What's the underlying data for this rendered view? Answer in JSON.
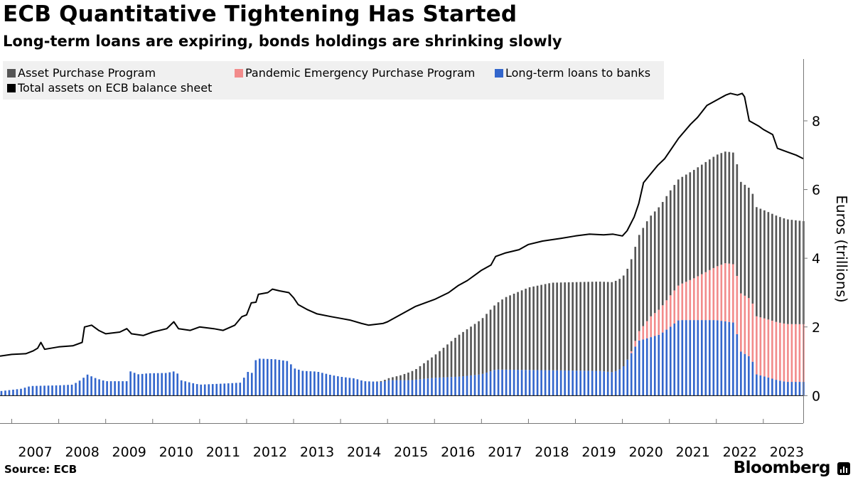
{
  "header": {
    "title": "ECB Quantitative Tightening Has Started",
    "subtitle": "Long-term loans are expiring, bonds holdings are shrinking slowly"
  },
  "legend": {
    "app": "Asset Purchase Program",
    "pepp": "Pandemic Emergency Purchase Program",
    "loans": "Long-term loans to banks",
    "total": "Total assets on ECB balance sheet"
  },
  "footer": {
    "source": "Source: ECB",
    "brand": "Bloomberg"
  },
  "colors": {
    "app": "#555555",
    "pepp": "#f28b8b",
    "loans": "#3366cc",
    "total": "#000000",
    "axis": "#777777"
  },
  "chart_data": {
    "type": "bar",
    "stacked": true,
    "title": "ECB Quantitative Tightening Has Started",
    "subtitle": "Long-term loans are expiring, bonds holdings are shrinking slowly",
    "ylabel": "Euros (trillions)",
    "xlabel": "",
    "ylim": [
      -0.8,
      9.8
    ],
    "xlim": [
      2006.75,
      2023.85
    ],
    "yticks": [
      0,
      2,
      4,
      6,
      8
    ],
    "ytick_labels": [
      "0",
      "2",
      "4",
      "6",
      "8"
    ],
    "xtick_labels": [
      "2007",
      "2008",
      "2009",
      "2010",
      "2011",
      "2012",
      "2013",
      "2014",
      "2015",
      "2016",
      "2017",
      "2018",
      "2019",
      "2020",
      "2021",
      "2022",
      "2023"
    ],
    "bar_start": 2006.78,
    "bar_step": 0.0833,
    "bar_count": 206,
    "series": [
      {
        "name": "Long-term loans to banks",
        "kind": "bar",
        "anchors": [
          [
            2006.75,
            0.13
          ],
          [
            2007.2,
            0.2
          ],
          [
            2007.4,
            0.28
          ],
          [
            2008.0,
            0.3
          ],
          [
            2008.3,
            0.32
          ],
          [
            2008.5,
            0.48
          ],
          [
            2008.6,
            0.62
          ],
          [
            2008.8,
            0.5
          ],
          [
            2009.0,
            0.42
          ],
          [
            2009.45,
            0.42
          ],
          [
            2009.5,
            0.72
          ],
          [
            2009.7,
            0.62
          ],
          [
            2009.9,
            0.65
          ],
          [
            2010.3,
            0.66
          ],
          [
            2010.5,
            0.72
          ],
          [
            2010.6,
            0.45
          ],
          [
            2010.8,
            0.38
          ],
          [
            2011.0,
            0.32
          ],
          [
            2011.5,
            0.35
          ],
          [
            2011.9,
            0.38
          ],
          [
            2012.0,
            0.7
          ],
          [
            2012.15,
            0.65
          ],
          [
            2012.2,
            1.08
          ],
          [
            2012.6,
            1.06
          ],
          [
            2012.9,
            1.0
          ],
          [
            2013.0,
            0.8
          ],
          [
            2013.2,
            0.72
          ],
          [
            2013.5,
            0.7
          ],
          [
            2013.8,
            0.6
          ],
          [
            2014.0,
            0.55
          ],
          [
            2014.3,
            0.5
          ],
          [
            2014.5,
            0.42
          ],
          [
            2014.9,
            0.4
          ],
          [
            2015.0,
            0.45
          ],
          [
            2015.5,
            0.45
          ],
          [
            2016.0,
            0.52
          ],
          [
            2016.5,
            0.55
          ],
          [
            2017.0,
            0.62
          ],
          [
            2017.3,
            0.76
          ],
          [
            2019.5,
            0.72
          ],
          [
            2019.8,
            0.68
          ],
          [
            2020.0,
            0.8
          ],
          [
            2020.35,
            1.6
          ],
          [
            2020.8,
            1.78
          ],
          [
            2021.0,
            1.98
          ],
          [
            2021.2,
            2.2
          ],
          [
            2022.0,
            2.2
          ],
          [
            2022.4,
            2.12
          ],
          [
            2022.5,
            1.3
          ],
          [
            2022.75,
            1.1
          ],
          [
            2022.85,
            0.62
          ],
          [
            2023.05,
            0.55
          ],
          [
            2023.3,
            0.45
          ],
          [
            2023.5,
            0.4
          ],
          [
            2023.85,
            0.4
          ]
        ]
      },
      {
        "name": "Pandemic Emergency Purchase Program",
        "kind": "bar",
        "anchors": [
          [
            2006.75,
            0
          ],
          [
            2020.15,
            0
          ],
          [
            2020.3,
            0.2
          ],
          [
            2020.6,
            0.6
          ],
          [
            2021.0,
            0.9
          ],
          [
            2021.5,
            1.2
          ],
          [
            2022.2,
            1.7
          ],
          [
            2023.85,
            1.68
          ]
        ]
      },
      {
        "name": "Asset Purchase Program",
        "kind": "bar",
        "anchors": [
          [
            2006.75,
            0
          ],
          [
            2014.75,
            0
          ],
          [
            2015.0,
            0.05
          ],
          [
            2015.3,
            0.15
          ],
          [
            2015.6,
            0.3
          ],
          [
            2016.0,
            0.65
          ],
          [
            2016.5,
            1.2
          ],
          [
            2017.0,
            1.6
          ],
          [
            2017.5,
            2.1
          ],
          [
            2018.0,
            2.4
          ],
          [
            2018.5,
            2.55
          ],
          [
            2019.5,
            2.6
          ],
          [
            2020.15,
            2.65
          ],
          [
            2020.5,
            2.9
          ],
          [
            2021.0,
            3.05
          ],
          [
            2021.5,
            3.15
          ],
          [
            2022.0,
            3.25
          ],
          [
            2022.5,
            3.25
          ],
          [
            2023.0,
            3.15
          ],
          [
            2023.5,
            3.05
          ],
          [
            2023.85,
            3.0
          ]
        ]
      },
      {
        "name": "Total assets on ECB balance sheet",
        "kind": "line",
        "points": [
          [
            2006.75,
            1.15
          ],
          [
            2007.0,
            1.2
          ],
          [
            2007.3,
            1.22
          ],
          [
            2007.45,
            1.3
          ],
          [
            2007.55,
            1.38
          ],
          [
            2007.62,
            1.55
          ],
          [
            2007.7,
            1.35
          ],
          [
            2008.0,
            1.42
          ],
          [
            2008.3,
            1.45
          ],
          [
            2008.5,
            1.55
          ],
          [
            2008.55,
            2.0
          ],
          [
            2008.7,
            2.05
          ],
          [
            2008.85,
            1.9
          ],
          [
            2009.0,
            1.8
          ],
          [
            2009.3,
            1.85
          ],
          [
            2009.45,
            1.95
          ],
          [
            2009.55,
            1.8
          ],
          [
            2009.8,
            1.75
          ],
          [
            2010.0,
            1.85
          ],
          [
            2010.3,
            1.95
          ],
          [
            2010.45,
            2.15
          ],
          [
            2010.55,
            1.95
          ],
          [
            2010.8,
            1.9
          ],
          [
            2011.0,
            2.0
          ],
          [
            2011.3,
            1.95
          ],
          [
            2011.5,
            1.9
          ],
          [
            2011.75,
            2.05
          ],
          [
            2011.9,
            2.3
          ],
          [
            2012.0,
            2.35
          ],
          [
            2012.1,
            2.7
          ],
          [
            2012.2,
            2.72
          ],
          [
            2012.25,
            2.95
          ],
          [
            2012.45,
            3.0
          ],
          [
            2012.55,
            3.1
          ],
          [
            2012.7,
            3.05
          ],
          [
            2012.9,
            3.0
          ],
          [
            2013.0,
            2.85
          ],
          [
            2013.1,
            2.65
          ],
          [
            2013.3,
            2.5
          ],
          [
            2013.5,
            2.38
          ],
          [
            2013.8,
            2.3
          ],
          [
            2014.0,
            2.25
          ],
          [
            2014.2,
            2.2
          ],
          [
            2014.45,
            2.1
          ],
          [
            2014.6,
            2.05
          ],
          [
            2014.9,
            2.1
          ],
          [
            2015.0,
            2.15
          ],
          [
            2015.2,
            2.3
          ],
          [
            2015.4,
            2.45
          ],
          [
            2015.6,
            2.6
          ],
          [
            2015.8,
            2.7
          ],
          [
            2016.0,
            2.8
          ],
          [
            2016.3,
            3.0
          ],
          [
            2016.5,
            3.2
          ],
          [
            2016.7,
            3.35
          ],
          [
            2016.9,
            3.55
          ],
          [
            2017.0,
            3.65
          ],
          [
            2017.2,
            3.8
          ],
          [
            2017.3,
            4.05
          ],
          [
            2017.5,
            4.15
          ],
          [
            2017.8,
            4.25
          ],
          [
            2018.0,
            4.4
          ],
          [
            2018.3,
            4.5
          ],
          [
            2018.7,
            4.58
          ],
          [
            2019.0,
            4.65
          ],
          [
            2019.3,
            4.7
          ],
          [
            2019.6,
            4.68
          ],
          [
            2019.8,
            4.7
          ],
          [
            2020.0,
            4.65
          ],
          [
            2020.1,
            4.8
          ],
          [
            2020.25,
            5.2
          ],
          [
            2020.35,
            5.6
          ],
          [
            2020.45,
            6.2
          ],
          [
            2020.6,
            6.45
          ],
          [
            2020.75,
            6.7
          ],
          [
            2020.9,
            6.9
          ],
          [
            2021.0,
            7.1
          ],
          [
            2021.2,
            7.5
          ],
          [
            2021.45,
            7.9
          ],
          [
            2021.6,
            8.1
          ],
          [
            2021.8,
            8.45
          ],
          [
            2022.0,
            8.6
          ],
          [
            2022.2,
            8.75
          ],
          [
            2022.3,
            8.8
          ],
          [
            2022.45,
            8.75
          ],
          [
            2022.55,
            8.8
          ],
          [
            2022.6,
            8.7
          ],
          [
            2022.7,
            8.0
          ],
          [
            2022.9,
            7.85
          ],
          [
            2023.0,
            7.75
          ],
          [
            2023.2,
            7.6
          ],
          [
            2023.3,
            7.2
          ],
          [
            2023.5,
            7.1
          ],
          [
            2023.7,
            7.0
          ],
          [
            2023.85,
            6.9
          ]
        ]
      }
    ]
  }
}
